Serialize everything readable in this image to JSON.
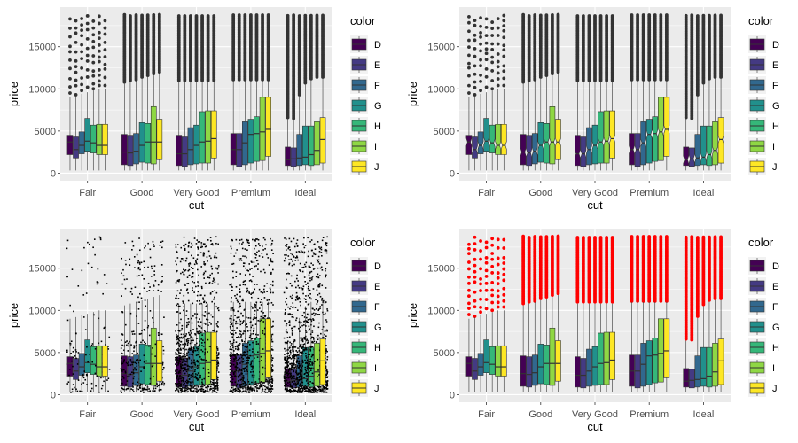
{
  "colors": {
    "panel_bg": "#ebebeb",
    "grid": "#ffffff",
    "outlier": "#333333",
    "outlier_red": "#ff0000",
    "jitter": "#000000",
    "whisker": "#333333"
  },
  "chart_data": [
    {
      "id": "p1",
      "type": "boxplot",
      "variant": "plain",
      "xlabel": "cut",
      "ylabel": "price",
      "categories": [
        "Fair",
        "Good",
        "Very Good",
        "Premium",
        "Ideal"
      ],
      "yticks": [
        0,
        5000,
        10000,
        15000
      ],
      "ytick_labels": [
        "0",
        "5000",
        "10000",
        "15000"
      ],
      "ylim": [
        -900,
        19700
      ],
      "legend": {
        "title": "color",
        "labels": [
          "D",
          "E",
          "F",
          "G",
          "H",
          "I",
          "J"
        ]
      },
      "group_colors": [
        "#440154",
        "#443A83",
        "#31688E",
        "#21908C",
        "#35B779",
        "#8FD744",
        "#FDE725"
      ],
      "stats": [
        [
          [
            2200,
            3700,
            4500
          ],
          [
            1800,
            2800,
            4300
          ],
          [
            2300,
            3300,
            4900
          ],
          [
            2600,
            3800,
            6500
          ],
          [
            2400,
            3600,
            5700
          ],
          [
            2200,
            3300,
            5800
          ],
          [
            2200,
            3300,
            5800
          ]
        ],
        [
          [
            1000,
            2500,
            4600
          ],
          [
            900,
            2400,
            4500
          ],
          [
            1100,
            2600,
            4700
          ],
          [
            1300,
            3300,
            6000
          ],
          [
            1200,
            3700,
            5900
          ],
          [
            1100,
            3700,
            7900
          ],
          [
            1600,
            3700,
            6400
          ]
        ],
        [
          [
            900,
            2300,
            4500
          ],
          [
            800,
            2300,
            4300
          ],
          [
            1000,
            2800,
            5400
          ],
          [
            1100,
            3300,
            5700
          ],
          [
            1200,
            3700,
            7300
          ],
          [
            1200,
            3800,
            7400
          ],
          [
            1800,
            4100,
            7400
          ]
        ],
        [
          [
            1000,
            2800,
            4700
          ],
          [
            800,
            2800,
            4700
          ],
          [
            1000,
            3600,
            6100
          ],
          [
            1200,
            4600,
            6400
          ],
          [
            1400,
            4700,
            6700
          ],
          [
            1500,
            4900,
            9000
          ],
          [
            2000,
            5200,
            9000
          ]
        ],
        [
          [
            900,
            1600,
            3100
          ],
          [
            800,
            1700,
            3000
          ],
          [
            900,
            1800,
            4600
          ],
          [
            1000,
            1900,
            5600
          ],
          [
            900,
            2200,
            5600
          ],
          [
            1000,
            2700,
            6100
          ],
          [
            1200,
            4000,
            6600
          ]
        ]
      ],
      "whisker_top": [
        [
          9000,
          9200,
          9400,
          9600,
          9800,
          10000,
          10000
        ],
        [
          10600,
          10800,
          11000,
          11200,
          11400,
          11600,
          11800
        ],
        [
          10800,
          10800,
          10800,
          10800,
          10800,
          10800,
          10800
        ],
        [
          11000,
          11000,
          11000,
          11000,
          11000,
          11000,
          11000
        ],
        [
          6400,
          6300,
          9100,
          10500,
          11000,
          11200,
          11200
        ]
      ],
      "outlier_min": [
        [
          9500,
          9300,
          9800,
          10200,
          10000,
          10400,
          10400
        ],
        [
          10800,
          11000,
          11100,
          11400,
          11600,
          11800,
          12000
        ],
        [
          11000,
          11000,
          11000,
          11000,
          11000,
          11000,
          11000
        ],
        [
          11100,
          11100,
          11100,
          11100,
          11100,
          11100,
          11100
        ],
        [
          6600,
          6500,
          9300,
          10700,
          11200,
          11400,
          11400
        ]
      ],
      "sparse_outliers": [
        true,
        false,
        false,
        false,
        false
      ]
    },
    {
      "id": "p2",
      "type": "boxplot",
      "variant": "notched",
      "xlabel": "cut",
      "ylabel": "price",
      "categories": [
        "Fair",
        "Good",
        "Very Good",
        "Premium",
        "Ideal"
      ],
      "yticks": [
        0,
        5000,
        10000,
        15000
      ],
      "ytick_labels": [
        "0",
        "5000",
        "10000",
        "15000"
      ],
      "ylim": [
        -900,
        19700
      ],
      "legend": {
        "title": "color",
        "labels": [
          "D",
          "E",
          "F",
          "G",
          "H",
          "I",
          "J"
        ]
      }
    },
    {
      "id": "p3",
      "type": "boxplot",
      "variant": "jitter",
      "xlabel": "cut",
      "ylabel": "price",
      "categories": [
        "Fair",
        "Good",
        "Very Good",
        "Premium",
        "Ideal"
      ],
      "yticks": [
        0,
        5000,
        10000,
        15000
      ],
      "ytick_labels": [
        "0",
        "5000",
        "10000",
        "15000"
      ],
      "ylim": [
        -900,
        19700
      ],
      "legend": {
        "title": "color",
        "labels": [
          "D",
          "E",
          "F",
          "G",
          "H",
          "I",
          "J"
        ]
      }
    },
    {
      "id": "p4",
      "type": "boxplot",
      "variant": "red_outliers",
      "xlabel": "cut",
      "ylabel": "price",
      "categories": [
        "Fair",
        "Good",
        "Very Good",
        "Premium",
        "Ideal"
      ],
      "yticks": [
        0,
        5000,
        10000,
        15000
      ],
      "ytick_labels": [
        "0",
        "5000",
        "10000",
        "15000"
      ],
      "ylim": [
        -900,
        19700
      ],
      "legend": {
        "title": "color",
        "labels": [
          "D",
          "E",
          "F",
          "G",
          "H",
          "I",
          "J"
        ]
      }
    }
  ]
}
